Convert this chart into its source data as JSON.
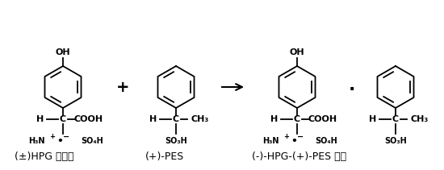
{
  "bg_color": "#ffffff",
  "figsize": [
    5.5,
    2.11
  ],
  "dpi": 100,
  "label1": "(±)HPG 碗酸盐",
  "label2": "(+)-PES",
  "label3": "(-)-HPG-(+)-PES 复盐",
  "black": "#000000",
  "font_size_label": 9,
  "font_size_chem": 8,
  "font_size_small": 7
}
